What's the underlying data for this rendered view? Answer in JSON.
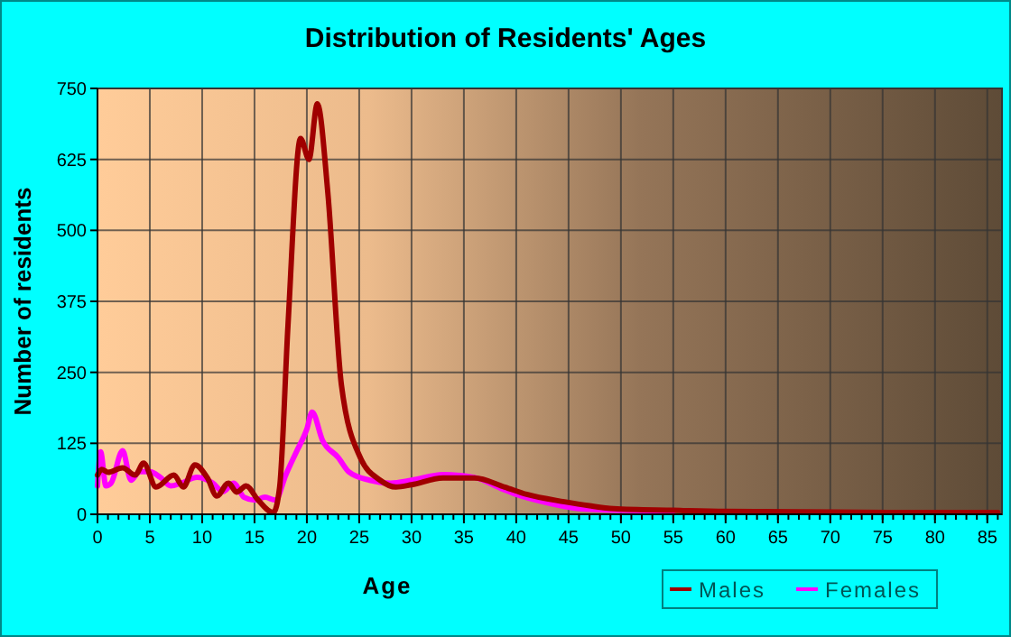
{
  "chart_data": {
    "type": "line",
    "title": "Distribution of Residents' Ages",
    "xlabel": "Age",
    "ylabel": "Number of residents",
    "xlim": [
      0,
      86.4
    ],
    "xticks": [
      0,
      5,
      10,
      15,
      20,
      25,
      30,
      35,
      40,
      45,
      50,
      55,
      60,
      65,
      70,
      75,
      80,
      85
    ],
    "ylim": [
      0,
      750
    ],
    "yticks": [
      0,
      125,
      250,
      375,
      500,
      625,
      750
    ],
    "grid": true,
    "legend": "bottom right",
    "marker": "none",
    "line_style": "solid",
    "series": [
      {
        "name": "Males",
        "color": "#a00000",
        "x": [
          0,
          0.4,
          1,
          2.4,
          3.6,
          4.4,
          5.6,
          7.3,
          8.2,
          9.3,
          10.5,
          11.4,
          12.5,
          13.3,
          14.2,
          15.3,
          16.8,
          17.4,
          18.2,
          19.4,
          20.2,
          21,
          22,
          23.3,
          25.1,
          27,
          28.5,
          30,
          33,
          36,
          38.9,
          41,
          44.6,
          47,
          49.3,
          55,
          60,
          70,
          80,
          86
        ],
        "values": [
          69,
          79,
          74,
          82,
          69,
          90,
          48,
          69,
          48,
          87,
          64,
          32,
          55,
          39,
          50,
          26,
          3,
          48,
          334,
          662,
          625,
          723,
          567,
          228,
          100,
          60,
          48,
          52,
          64,
          64,
          48,
          35,
          22,
          15,
          10,
          7,
          5,
          4,
          3,
          3
        ]
      },
      {
        "name": "Females",
        "color": "#ff00ff",
        "x": [
          0,
          0.3,
          0.8,
          1.3,
          2.4,
          3.2,
          4,
          5,
          6,
          7,
          8,
          9.5,
          11,
          12,
          13,
          14,
          15,
          16,
          17,
          18,
          19,
          20,
          20.5,
          21.5,
          23,
          24,
          26,
          28,
          30,
          33,
          36,
          38.6,
          40,
          43,
          46,
          50,
          55
        ],
        "values": [
          50,
          110,
          50,
          55,
          112,
          60,
          75,
          75,
          65,
          50,
          55,
          65,
          55,
          40,
          55,
          30,
          25,
          30,
          25,
          70,
          110,
          150,
          180,
          130,
          100,
          75,
          60,
          55,
          60,
          70,
          65,
          45,
          35,
          20,
          10,
          7,
          6
        ]
      }
    ]
  }
}
